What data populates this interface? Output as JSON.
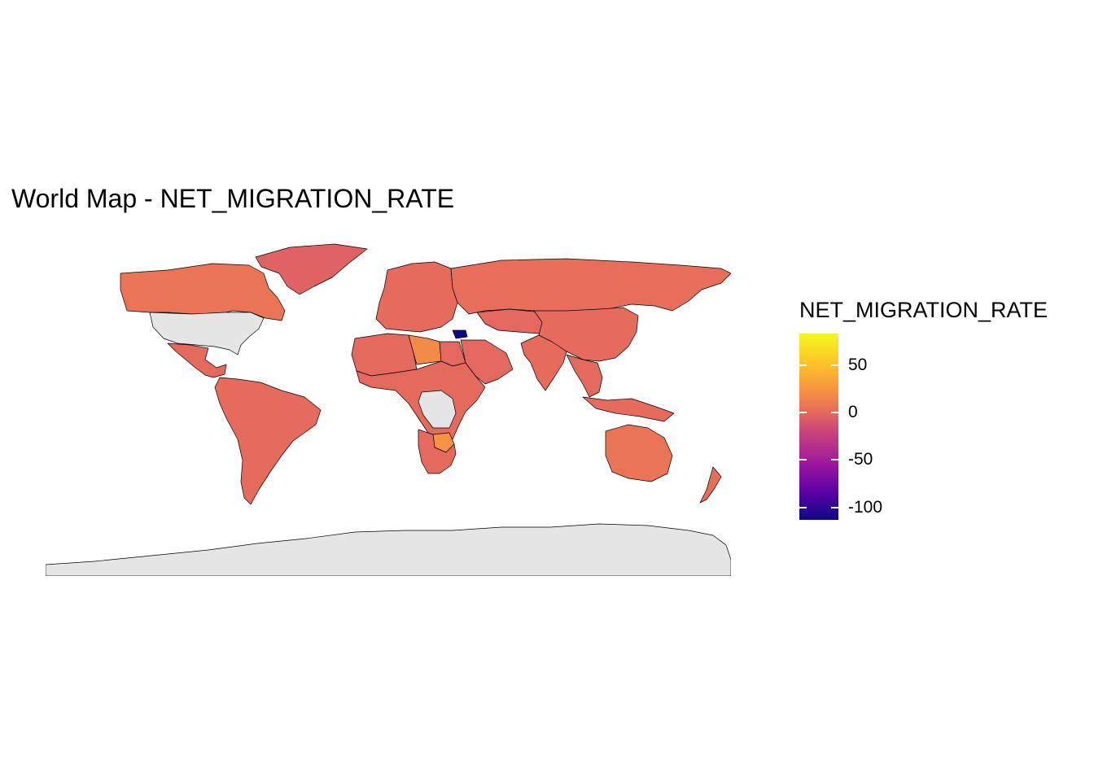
{
  "chart_data": {
    "type": "choropleth",
    "title": "World Map - NET_MIGRATION_RATE",
    "variable": "NET_MIGRATION_RATE",
    "color_scale": {
      "palette": "plasma",
      "min": -113,
      "max": 83,
      "ticks": [
        {
          "value": 50,
          "label": "50"
        },
        {
          "value": 0,
          "label": "0"
        },
        {
          "value": -50,
          "label": "-50"
        },
        {
          "value": -100,
          "label": "-100"
        }
      ],
      "colors": [
        "#0d0887",
        "#5c01a6",
        "#9c179e",
        "#cc4778",
        "#e56b5d",
        "#f89441",
        "#fdc328",
        "#f0f921"
      ]
    },
    "missing_color": "#e5e5e5",
    "regions": [
      {
        "name": "Greenland",
        "value": -8
      },
      {
        "name": "Canada",
        "value": 6
      },
      {
        "name": "United States",
        "value": null
      },
      {
        "name": "Mexico",
        "value": -2
      },
      {
        "name": "South America",
        "value": -1
      },
      {
        "name": "Europe",
        "value": -1
      },
      {
        "name": "Russia",
        "value": 1
      },
      {
        "name": "Central Asia",
        "value": -3
      },
      {
        "name": "China",
        "value": -1
      },
      {
        "name": "India",
        "value": -1
      },
      {
        "name": "Southeast Asia",
        "value": -2
      },
      {
        "name": "Indonesia",
        "value": -1
      },
      {
        "name": "North Africa",
        "value": -2
      },
      {
        "name": "Libya",
        "value": 20
      },
      {
        "name": "Egypt",
        "value": -3
      },
      {
        "name": "Sub-Saharan Africa",
        "value": -2
      },
      {
        "name": "DR Congo",
        "value": null
      },
      {
        "name": "Zimbabwe",
        "value": 25
      },
      {
        "name": "Southern Africa",
        "value": -2
      },
      {
        "name": "Syria",
        "value": -113
      },
      {
        "name": "Arabian Peninsula",
        "value": -3
      },
      {
        "name": "Australia",
        "value": 6
      },
      {
        "name": "New Zealand",
        "value": 2
      },
      {
        "name": "Antarctica",
        "value": null
      }
    ]
  }
}
